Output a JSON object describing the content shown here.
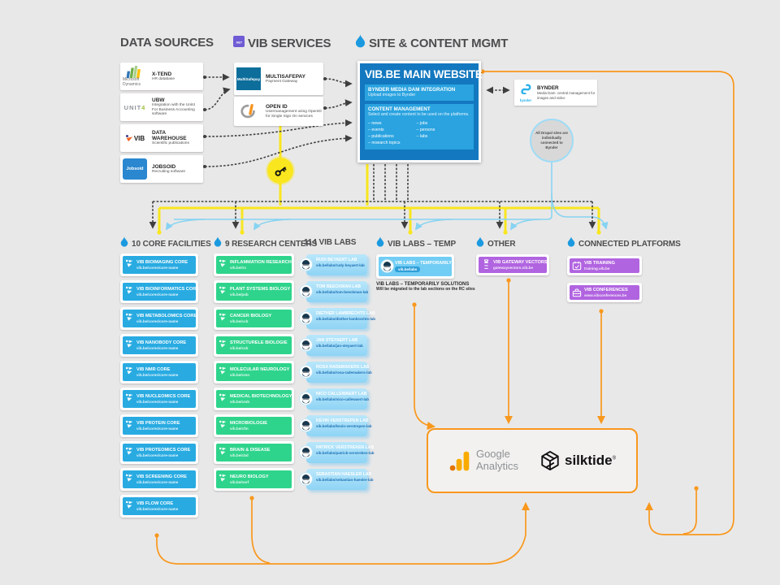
{
  "palette": {
    "bg": "#e9e8e8",
    "blue": "#29abe2",
    "green": "#2fd48c",
    "purple": "#b164e0",
    "site_blue": "#1378bf",
    "site_inner": "#2aa3e0",
    "orange": "#f8981d",
    "yellow": "#f9e61e",
    "lab_blue": "#8fd4f5",
    "dash": "#3f3f3f",
    "wire_blue": "#86d3f2"
  },
  "headers": {
    "data_sources": "DATA SOURCES",
    "vib_services": "VIB SERVICES",
    "site_mgmt": "SITE & CONTENT MGMT"
  },
  "data_sources": {
    "items": [
      {
        "title": "X-TEND",
        "subtitle": "HR database",
        "logo": "microsoft-dynamics-logo",
        "logo_label": "Microsoft Dynamics"
      },
      {
        "title": "UBW",
        "subtitle": "Integration with the Unit4 For Business Accounting software",
        "logo": "unit4-logo",
        "logo_label": "UNIT4"
      },
      {
        "title": "DATA WAREHOUSE",
        "subtitle": "Scientific publications",
        "logo": "vib-logo",
        "logo_label": "VIB"
      },
      {
        "title": "JOBSOID",
        "subtitle": "Recruiting software",
        "logo": "jobsoid-logo",
        "logo_label": "Jobsoid"
      }
    ]
  },
  "services": {
    "items": [
      {
        "title": "MULTISAFEPAY",
        "subtitle": "Payment Gateway",
        "logo": "multisafepay-logo",
        "logo_label": "MultiSafepay"
      },
      {
        "title": "OPEN ID",
        "subtitle": "Usermanagement using OpenID for Single Sign On services",
        "logo": "openid-logo",
        "logo_label": ""
      }
    ]
  },
  "website": {
    "title": "VIB.BE MAIN WEBSITE",
    "sections": [
      {
        "title": "BYNDER MEDIA DAM INTEGRATION",
        "body": "Upload images to Bynder"
      },
      {
        "title": "CONTENT MANAGEMENT",
        "body": "Select and create content to be used on the platforms.",
        "list_left": [
          "– news",
          "– events",
          "– publications",
          "– research topics"
        ],
        "list_right": [
          "– jobs",
          "– persons",
          "– labs"
        ]
      }
    ]
  },
  "bynder": {
    "title": "BYNDER",
    "subtitle": "Media Dam: central management for images and video",
    "logo_label": "bynder"
  },
  "drupal_note": "All Drupal sites are individually connected to Bynder",
  "columns": {
    "cores": {
      "header": "10 CORE FACILITIES",
      "url": "vib.be/cores/core-name",
      "items": [
        "VIB BIOIMAGING CORE",
        "VIB BIOINFORMATICS CORE",
        "VIB METABOLOMICS CORE",
        "VIB NANOBODY CORE",
        "VIB NMR CORE",
        "VIB NUCLEOMICS CORE",
        "VIB PROTEIN CORE",
        "VIB PROTEOMICS CORE",
        "VIB SCREENING CORE",
        "VIB FLOW CORE"
      ]
    },
    "research": {
      "header": "9 RESEARCH CENTERS",
      "items": [
        {
          "name": "INFLAMMATION RESEARCH",
          "url": "vib.be/irc"
        },
        {
          "name": "PLANT SYSTEMS BIOLOGY",
          "url": "vib.be/psb"
        },
        {
          "name": "CANCER BIOLOGY",
          "url": "vib.be/ccb"
        },
        {
          "name": "STRUCTURELE BIOLOGIE",
          "url": "vib.be/csb"
        },
        {
          "name": "MOLECULAR NEUROLOGY",
          "url": "vib.be/cmn"
        },
        {
          "name": "MEDICAL BIOTECHNOLOGY",
          "url": "vib.be/cmb"
        },
        {
          "name": "MICROBIOLOGIE",
          "url": "vib.be/cfm"
        },
        {
          "name": "BRAIN & DISEASE",
          "url": "vib.be/cbd"
        },
        {
          "name": "NEURO BIOLOGY",
          "url": "vib.be/nerf"
        }
      ]
    },
    "labs": {
      "header": "114 VIB LABS",
      "items": [
        {
          "name": "RUDI BEYAERT LAB",
          "url": "vib.be/labs/rudy-beyaert-lab"
        },
        {
          "name": "TOM BEECKMAN LAB",
          "url": "vib.be/labs/tom-beeckman-lab"
        },
        {
          "name": "DIETHER LAMBRECHTS LAB",
          "url": "vib.be/labs/diether-lambrechts-lab"
        },
        {
          "name": "JAN STEYAERT LAB",
          "url": "vib.be/labs/jan-steyaert-lab"
        },
        {
          "name": "ROSA RADEMAKERS LAB",
          "url": "vib.be/labs/rosa-rademakers-lab"
        },
        {
          "name": "NICO CALLEWAERT LAB",
          "url": "vib.be/labs/nico-callewaert-lab"
        },
        {
          "name": "KEVIN VERSTREPEN LAB",
          "url": "vib.be/labs/kevin-verstrepen-lab"
        },
        {
          "name": "PATRICK VERSTREKEN LAB",
          "url": "vib.be/labs/patrick-verstreken-lab"
        },
        {
          "name": "SEBASTIAN HAESLER LAB",
          "url": "vib.be/labs/sebastian-haesler-lab"
        }
      ]
    },
    "temp": {
      "header": "VIB LABS – TEMP",
      "box": {
        "title": "VIB LABS – TEMPORARILY",
        "url": "vib.be/labs"
      },
      "note_title": "VIB LABS – TEMPORARILY SOLUTIONS",
      "note_body": "Will be migrated to the lab sections on the RC sites"
    },
    "other": {
      "header": "OTHER",
      "items": [
        {
          "title": "VIB GATEWAY VECTORS",
          "url": "gatewayvectors.vib.be",
          "icon": "dna-icon"
        }
      ]
    },
    "connected": {
      "header": "CONNECTED PLATFORMS",
      "items": [
        {
          "title": "VIB TRAINING",
          "url": "training.vib.be",
          "icon": "calendar-icon"
        },
        {
          "title": "VIB CONFERENCES",
          "url": "www.vibconferences.be",
          "icon": "presentation-icon"
        }
      ]
    }
  },
  "analytics": {
    "google_line1": "Google",
    "google_line2": "Analytics",
    "silktide": "silktide",
    "registered": "®"
  }
}
